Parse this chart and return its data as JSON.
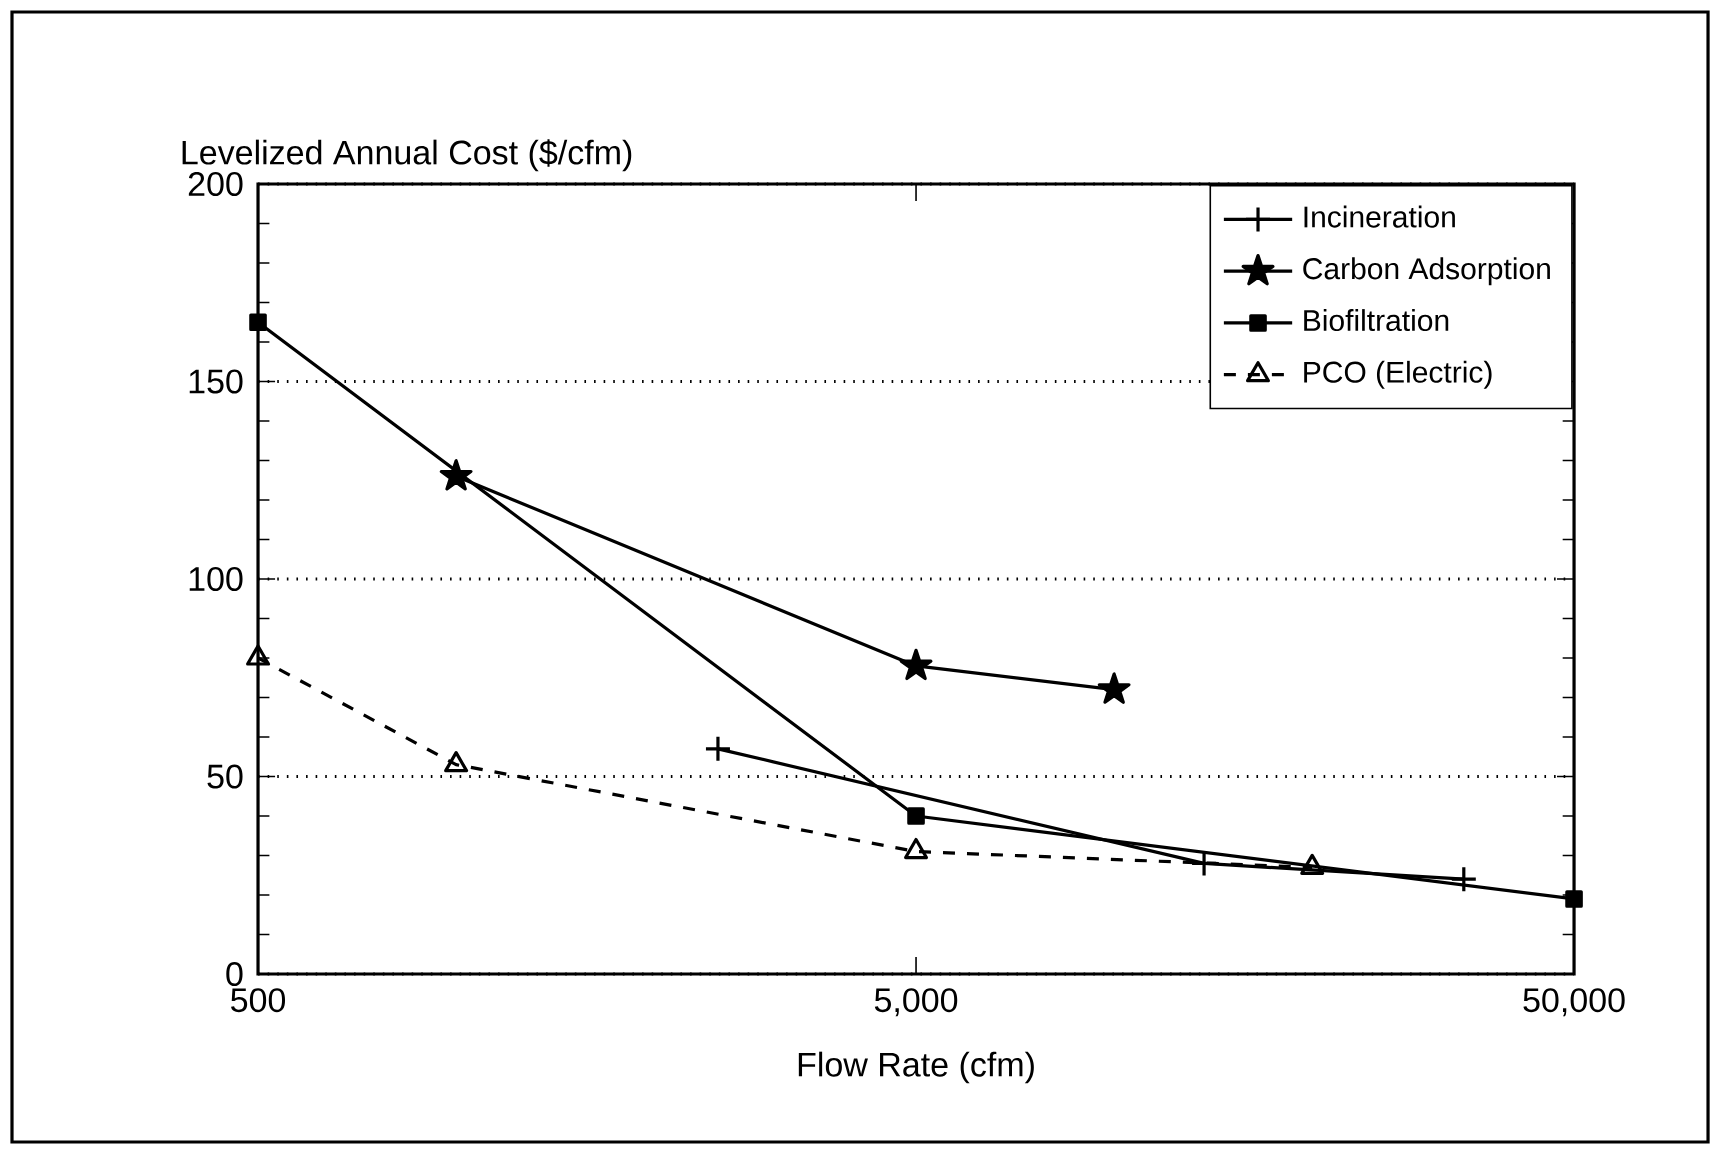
{
  "chart_data": {
    "type": "line",
    "xlabel": "Flow Rate (cfm)",
    "ylabel": "Levelized Annual Cost ($/cfm)",
    "log": "x",
    "xlim": [
      500,
      50000
    ],
    "xticks": [
      {
        "value": 500,
        "label": "500"
      },
      {
        "value": 5000,
        "label": "5,000"
      },
      {
        "value": 50000,
        "label": "50,000"
      }
    ],
    "ylim": [
      0,
      200
    ],
    "yticks": [
      0,
      50,
      100,
      150,
      200
    ],
    "grid": "y",
    "legend": "top right",
    "series": [
      {
        "name": "Incineration",
        "color": "#000000",
        "marker": "cross",
        "line_style": "solid",
        "x": [
          2500,
          13700,
          34000
        ],
        "values": [
          57,
          28,
          24
        ]
      },
      {
        "name": "Carbon Adsorption",
        "color": "#000000",
        "marker": "star",
        "line_style": "solid",
        "x": [
          1000,
          5000,
          10000
        ],
        "values": [
          126,
          78,
          72
        ]
      },
      {
        "name": "Biofiltration",
        "color": "#000000",
        "marker": "square",
        "line_style": "solid",
        "x": [
          500,
          5000,
          50000
        ],
        "values": [
          165,
          40,
          19
        ]
      },
      {
        "name": "PCO (Electric)",
        "color": "#000000",
        "marker": "triangle",
        "line_style": "dashed",
        "x": [
          500,
          1000,
          5000,
          20000
        ],
        "values": [
          80,
          53,
          31,
          27
        ]
      }
    ]
  }
}
